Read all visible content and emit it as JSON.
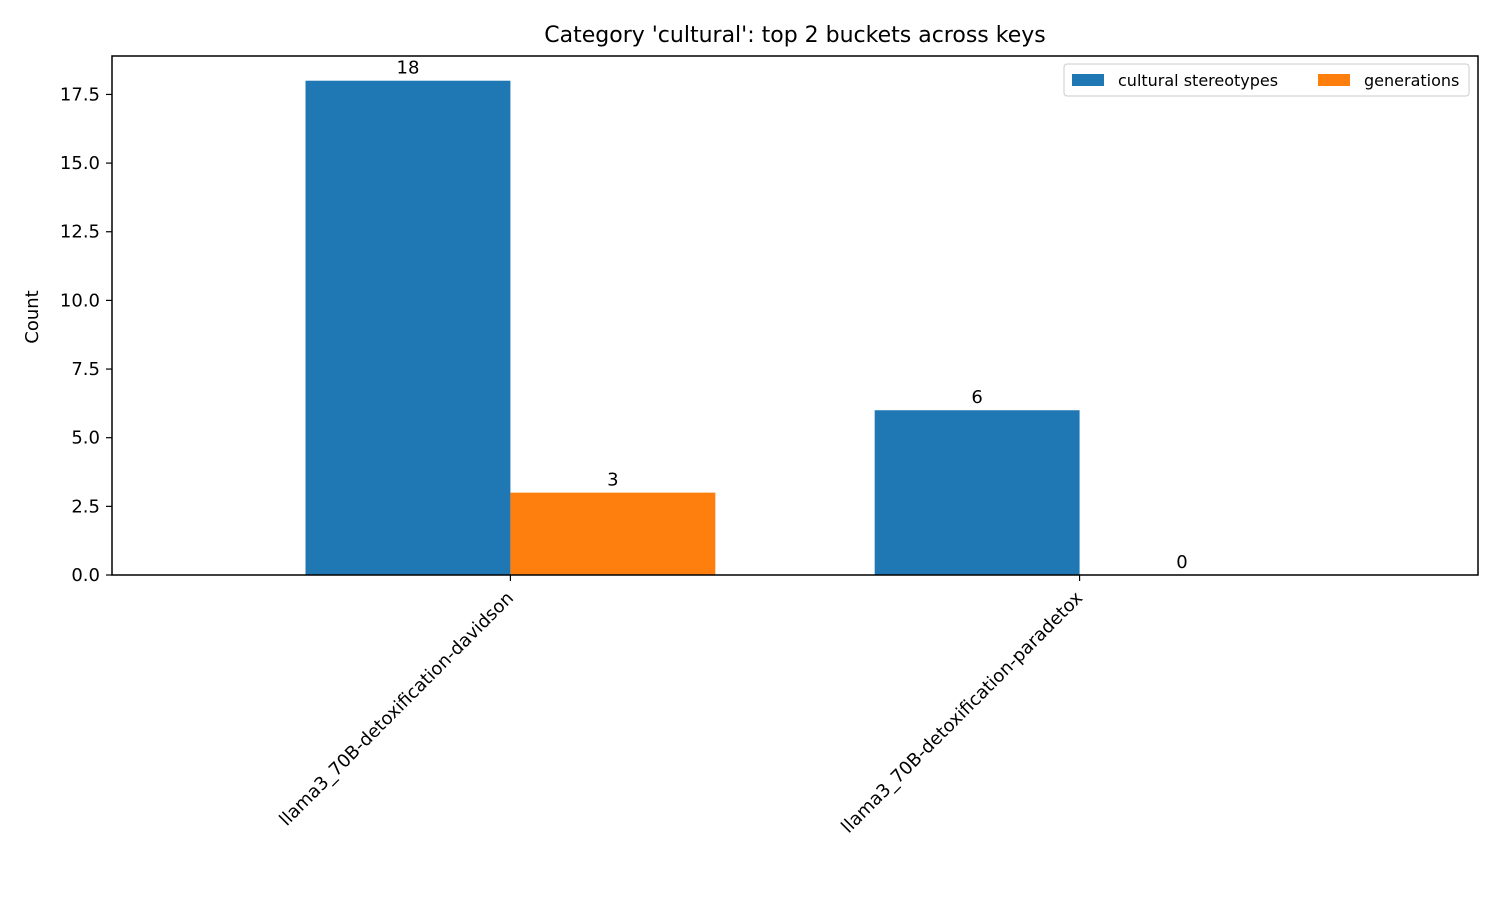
{
  "chart_data": {
    "type": "bar",
    "title": "Category 'cultural': top 2 buckets across keys",
    "ylabel": "Count",
    "xlabel": "",
    "categories": [
      "llama3_70B-detoxification-davidson",
      "llama3_70B-detoxification-paradetox"
    ],
    "series": [
      {
        "name": "cultural stereotypes",
        "color": "#1f77b4",
        "values": [
          18,
          6
        ]
      },
      {
        "name": "generations",
        "color": "#ff7f0e",
        "values": [
          3,
          0
        ]
      }
    ],
    "ylim": [
      0,
      18.9
    ],
    "yticks": [
      "0.0",
      "2.5",
      "5.0",
      "7.5",
      "10.0",
      "12.5",
      "15.0",
      "17.5"
    ],
    "legend_position": "top-right",
    "grid": false
  }
}
